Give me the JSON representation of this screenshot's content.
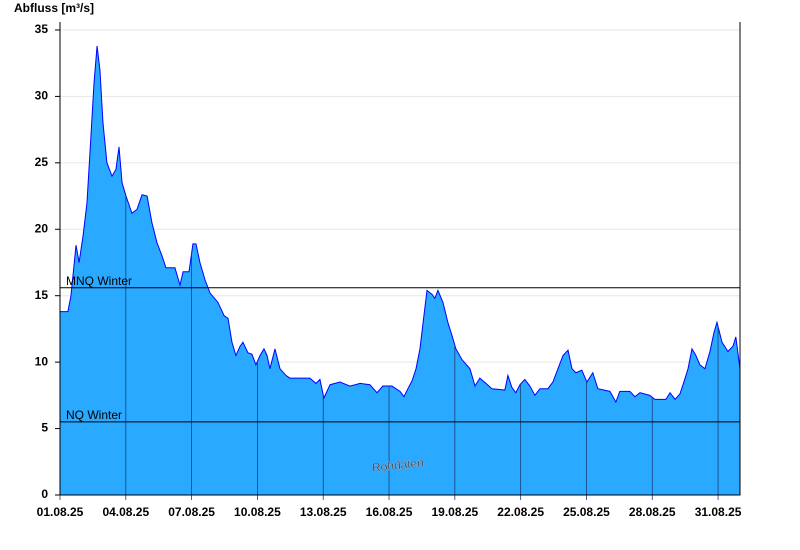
{
  "chart_data": {
    "type": "area",
    "y_label": "Abfluss [m³/s]",
    "watermark": "Rohdaten",
    "color": "#29a9ff",
    "line_color": "#0000ff",
    "grid": true,
    "xlim": [
      1,
      32
    ],
    "ylim": [
      0,
      35.6
    ],
    "yticks": [
      0,
      5,
      10,
      15,
      20,
      25,
      30,
      35
    ],
    "xticks": [
      {
        "value": 1,
        "label": "01.08.25"
      },
      {
        "value": 4,
        "label": "04.08.25"
      },
      {
        "value": 7,
        "label": "07.08.25"
      },
      {
        "value": 10,
        "label": "10.08.25"
      },
      {
        "value": 13,
        "label": "13.08.25"
      },
      {
        "value": 16,
        "label": "16.08.25"
      },
      {
        "value": 19,
        "label": "19.08.25"
      },
      {
        "value": 22,
        "label": "22.08.25"
      },
      {
        "value": 25,
        "label": "25.08.25"
      },
      {
        "value": 28,
        "label": "28.08.25"
      },
      {
        "value": 31,
        "label": "31.08.25"
      }
    ],
    "thresholds": [
      {
        "label": "MNQ Winter",
        "value": 15.6
      },
      {
        "label": "NQ Winter",
        "value": 5.5
      }
    ],
    "x": [
      1.0,
      1.36,
      1.5,
      1.73,
      1.87,
      2.05,
      2.23,
      2.41,
      2.55,
      2.69,
      2.82,
      2.96,
      3.14,
      3.37,
      3.55,
      3.69,
      3.83,
      4.01,
      4.28,
      4.51,
      4.74,
      4.97,
      5.19,
      5.42,
      5.65,
      5.83,
      6.24,
      6.47,
      6.61,
      6.88,
      7.06,
      7.2,
      7.38,
      7.61,
      7.84,
      8.2,
      8.48,
      8.66,
      8.84,
      9.02,
      9.21,
      9.34,
      9.57,
      9.75,
      9.93,
      10.12,
      10.3,
      10.44,
      10.57,
      10.8,
      11.03,
      11.3,
      11.48,
      11.94,
      12.39,
      12.67,
      12.85,
      13.03,
      13.31,
      13.76,
      14.22,
      14.68,
      15.13,
      15.45,
      15.72,
      16.13,
      16.5,
      16.68,
      16.86,
      17.05,
      17.23,
      17.41,
      17.59,
      17.73,
      17.96,
      18.09,
      18.23,
      18.46,
      18.68,
      18.87,
      19.05,
      19.32,
      19.69,
      19.92,
      20.14,
      20.42,
      20.69,
      21.28,
      21.42,
      21.6,
      21.78,
      21.97,
      22.19,
      22.42,
      22.65,
      22.88,
      23.24,
      23.47,
      23.7,
      23.93,
      24.16,
      24.34,
      24.52,
      24.79,
      25.02,
      25.29,
      25.52,
      26.07,
      26.34,
      26.52,
      26.98,
      27.21,
      27.44,
      27.89,
      28.12,
      28.62,
      28.81,
      29.04,
      29.26,
      29.44,
      29.63,
      29.81,
      29.99,
      30.17,
      30.4,
      30.63,
      30.81,
      30.95,
      31.18,
      31.45,
      31.68,
      31.81,
      32.0
    ],
    "values": [
      13.8,
      13.8,
      15,
      18.8,
      17.5,
      19.5,
      22,
      27,
      31,
      33.8,
      32,
      28,
      25,
      24,
      24.5,
      26.2,
      23.5,
      22.5,
      21.2,
      21.5,
      22.6,
      22.5,
      20.5,
      19,
      18,
      17.1,
      17.1,
      15.8,
      16.8,
      16.8,
      18.9,
      18.9,
      17.5,
      16.2,
      15.2,
      14.5,
      13.5,
      13.3,
      11.5,
      10.5,
      11.2,
      11.5,
      10.7,
      10.6,
      9.8,
      10.5,
      11.0,
      10.5,
      9.5,
      11.0,
      9.5,
      9.0,
      8.8,
      8.8,
      8.8,
      8.4,
      8.7,
      7.3,
      8.3,
      8.5,
      8.2,
      8.4,
      8.3,
      7.7,
      8.2,
      8.2,
      7.8,
      7.4,
      8.0,
      8.6,
      9.5,
      11,
      13.5,
      15.4,
      15.1,
      14.8,
      15.4,
      14.5,
      13,
      12,
      11,
      10.2,
      9.5,
      8.2,
      8.8,
      8.4,
      8.0,
      7.9,
      9.0,
      8.1,
      7.7,
      8.3,
      8.7,
      8.2,
      7.5,
      8.0,
      8.0,
      8.5,
      9.5,
      10.5,
      10.9,
      9.5,
      9.2,
      9.4,
      8.5,
      9.2,
      8.0,
      7.8,
      7.0,
      7.8,
      7.8,
      7.4,
      7.7,
      7.5,
      7.2,
      7.2,
      7.7,
      7.2,
      7.6,
      8.5,
      9.5,
      11.0,
      10.5,
      9.8,
      9.5,
      10.8,
      12.2,
      13.0,
      11.5,
      10.8,
      11.2,
      11.9,
      9.5
    ]
  }
}
